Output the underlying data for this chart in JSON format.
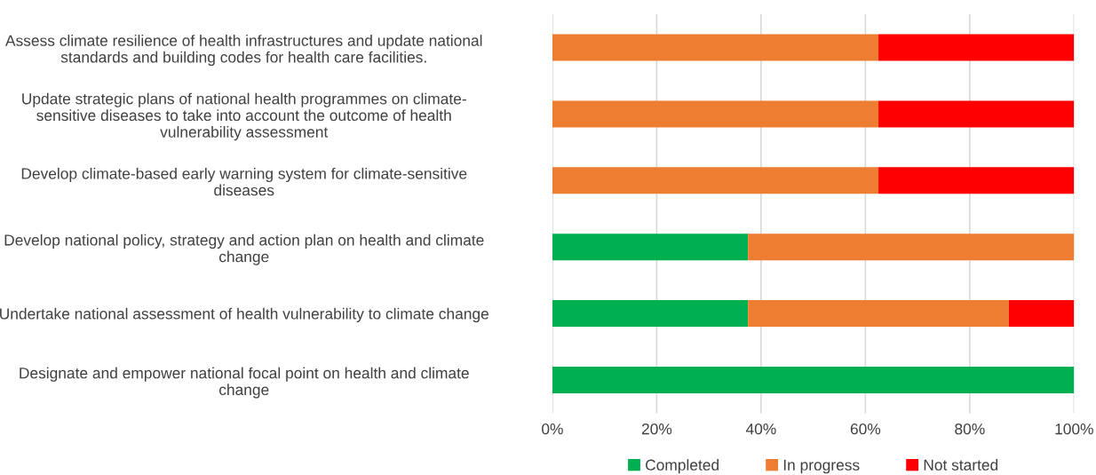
{
  "chart_data": {
    "type": "bar",
    "orientation": "horizontal",
    "stacked": true,
    "categories": [
      "Assess climate resilience of health infrastructures and update national\nstandards and building codes for health care facilities.",
      "Update strategic plans of national health programmes on climate-\nsensitive diseases to take into account the outcome of health\nvulnerability assessment",
      "Develop climate-based early warning system for climate-sensitive\ndiseases",
      "Develop national policy, strategy and action plan on health and climate\nchange",
      "Undertake national assessment of health vulnerability to climate change",
      "Designate and empower national focal point on health and climate\nchange"
    ],
    "series": [
      {
        "name": "Completed",
        "color": "#00b050",
        "values": [
          0,
          0,
          0,
          37.5,
          37.5,
          100
        ]
      },
      {
        "name": "In progress",
        "color": "#ed7d31",
        "values": [
          62.5,
          62.5,
          62.5,
          62.5,
          50,
          0
        ]
      },
      {
        "name": "Not started",
        "color": "#ff0000",
        "values": [
          37.5,
          37.5,
          37.5,
          0,
          12.5,
          0
        ]
      }
    ],
    "xlim": [
      0,
      100
    ],
    "xticks": [
      {
        "value": 0,
        "label": "0%"
      },
      {
        "value": 20,
        "label": "20%"
      },
      {
        "value": 40,
        "label": "40%"
      },
      {
        "value": 60,
        "label": "60%"
      },
      {
        "value": 80,
        "label": "80%"
      },
      {
        "value": 100,
        "label": "100%"
      }
    ],
    "grid": "x",
    "legend": "bottom"
  }
}
